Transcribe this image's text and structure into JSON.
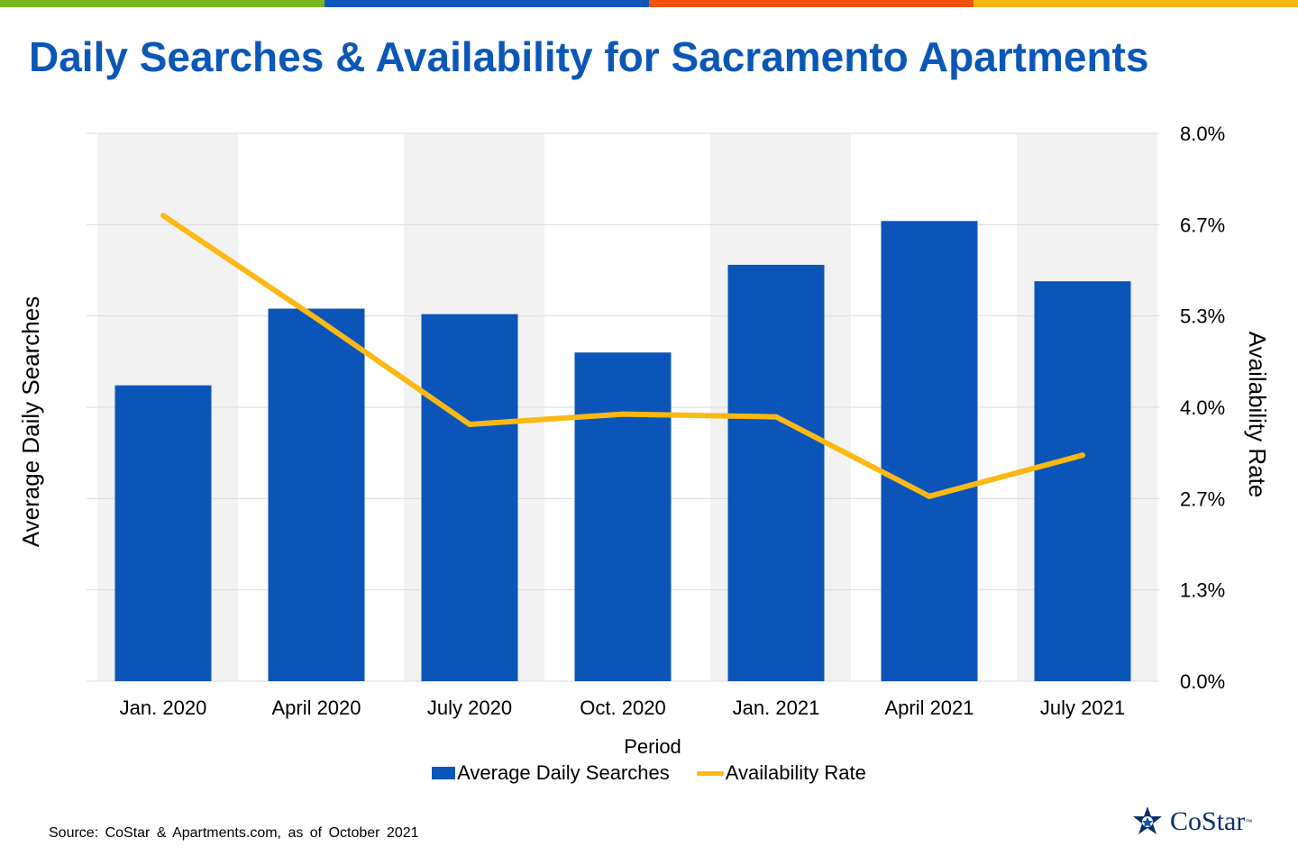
{
  "header": {
    "title": "Daily Searches & Availability for Sacramento Apartments",
    "accent_colors": [
      "#7ab51d",
      "#0b57b8",
      "#f2500f",
      "#fcb813"
    ]
  },
  "chart_data": {
    "type": "bar",
    "title": "Daily Searches & Availability for Sacramento Apartments",
    "xlabel": "Period",
    "ylabel": "Average Daily Searches",
    "y2label": "Availability Rate",
    "categories": [
      "Jan. 2020",
      "April 2020",
      "July 2020",
      "Oct. 2020",
      "Jan. 2021",
      "April 2021",
      "July 2021"
    ],
    "bar_series": {
      "name": "Average Daily Searches",
      "color": "#0b55b8",
      "values": [
        54,
        68,
        67,
        60,
        76,
        84,
        73
      ],
      "ylim": [
        0,
        100
      ],
      "note_values": "left axis has no printed tick labels; values are relative heights on a 0-100 scale"
    },
    "line_series": {
      "name": "Availability Rate",
      "color": "#fcb813",
      "values": [
        6.8,
        5.3,
        3.75,
        3.9,
        3.86,
        2.7,
        3.3
      ],
      "axis": "right"
    },
    "y2_ticks": [
      "0.0%",
      "1.3%",
      "2.7%",
      "4.0%",
      "5.3%",
      "6.7%",
      "8.0%"
    ],
    "y2lim": [
      0,
      8
    ],
    "alternating_band_color": "#f2f2f2",
    "grid": true,
    "legend_position": "bottom"
  },
  "legend": {
    "bar_label": "Average Daily Searches",
    "line_label": "Availability Rate"
  },
  "footer": {
    "source": "Source: CoStar & Apartments.com, as of October 2021",
    "logo_text": "CoStar",
    "logo_tm": "™"
  }
}
